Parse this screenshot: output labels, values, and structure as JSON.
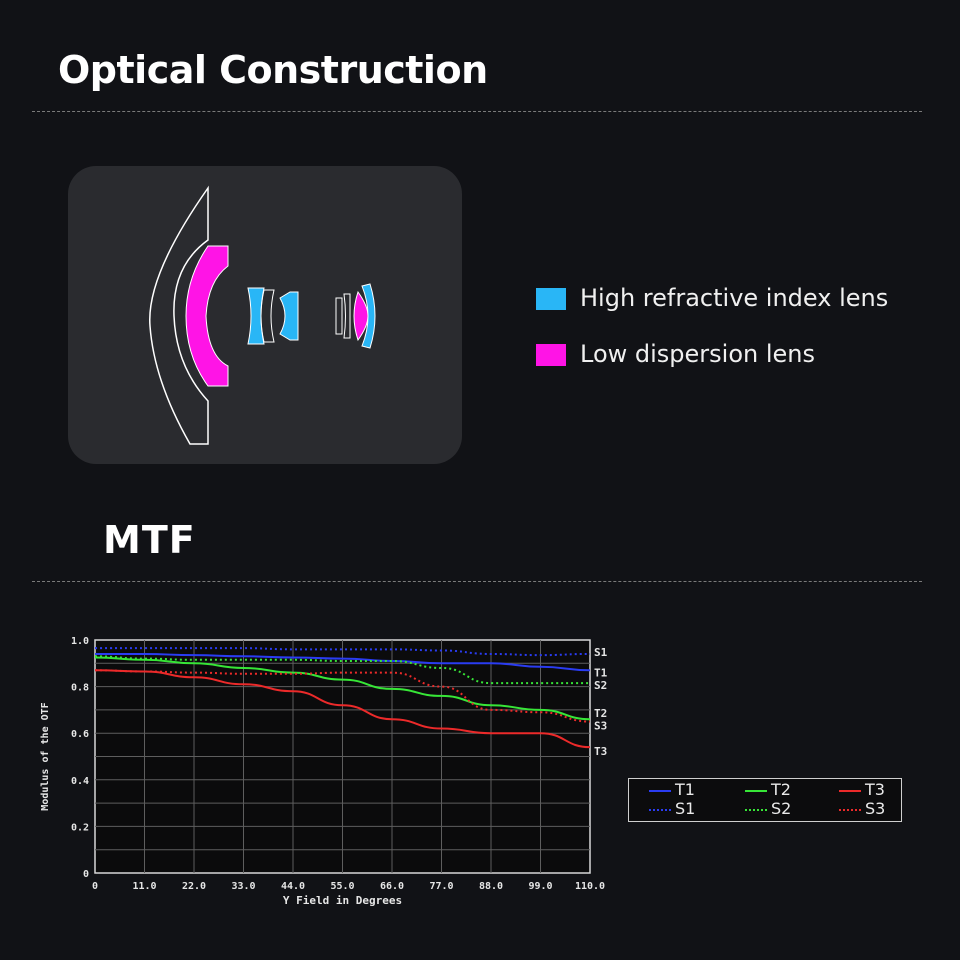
{
  "sections": {
    "optical_title": "Optical Construction",
    "mtf_title": "MTF"
  },
  "optical": {
    "legend": [
      {
        "label": "High refractive index lens",
        "color": "#29b6f6"
      },
      {
        "label": "Low dispersion lens",
        "color": "#ff14e6"
      }
    ]
  },
  "colors": {
    "background": "#111216",
    "card": "#2a2b2f",
    "t1": "#2a3cf2",
    "t2": "#37e637",
    "t3": "#ec2a2a"
  },
  "chart_data": {
    "type": "line",
    "xlabel": "Y Field in Degrees",
    "ylabel": "Modulus of the OTF",
    "xlim": [
      0,
      110
    ],
    "ylim": [
      0,
      1.0
    ],
    "x_ticks": [
      "0",
      "11.0",
      "22.0",
      "33.0",
      "44.0",
      "55.0",
      "66.0",
      "77.0",
      "88.0",
      "99.0",
      "110.0"
    ],
    "y_ticks": [
      "0",
      "0.2",
      "0.4",
      "0.6",
      "0.8",
      "1.0"
    ],
    "grid": true,
    "legend_position": "right",
    "series": [
      {
        "name": "T1",
        "color": "#2a3cf2",
        "dash": false,
        "end_label": "T1",
        "x": [
          0,
          11,
          22,
          33,
          44,
          55,
          66,
          77,
          88,
          99,
          110
        ],
        "y": [
          0.94,
          0.94,
          0.935,
          0.93,
          0.925,
          0.92,
          0.91,
          0.9,
          0.9,
          0.885,
          0.87
        ]
      },
      {
        "name": "S1",
        "color": "#2a3cf2",
        "dash": true,
        "end_label": "S1",
        "x": [
          0,
          11,
          22,
          33,
          44,
          55,
          66,
          77,
          88,
          99,
          110
        ],
        "y": [
          0.965,
          0.965,
          0.965,
          0.965,
          0.96,
          0.96,
          0.96,
          0.955,
          0.94,
          0.935,
          0.94
        ]
      },
      {
        "name": "T2",
        "color": "#37e637",
        "dash": false,
        "end_label": "T2",
        "x": [
          0,
          11,
          22,
          33,
          44,
          55,
          66,
          77,
          88,
          99,
          110
        ],
        "y": [
          0.925,
          0.915,
          0.9,
          0.88,
          0.86,
          0.83,
          0.79,
          0.76,
          0.72,
          0.7,
          0.66
        ]
      },
      {
        "name": "S2",
        "color": "#37e637",
        "dash": true,
        "end_label": "S2",
        "x": [
          0,
          11,
          22,
          33,
          44,
          55,
          66,
          77,
          88,
          99,
          110
        ],
        "y": [
          0.93,
          0.92,
          0.915,
          0.915,
          0.915,
          0.91,
          0.91,
          0.88,
          0.815,
          0.815,
          0.815
        ]
      },
      {
        "name": "T3",
        "color": "#ec2a2a",
        "dash": false,
        "end_label": "T3",
        "x": [
          0,
          11,
          22,
          33,
          44,
          55,
          66,
          77,
          88,
          99,
          110
        ],
        "y": [
          0.87,
          0.865,
          0.84,
          0.81,
          0.78,
          0.72,
          0.66,
          0.62,
          0.6,
          0.6,
          0.54
        ]
      },
      {
        "name": "S3",
        "color": "#ec2a2a",
        "dash": true,
        "end_label": "S3",
        "x": [
          0,
          11,
          22,
          33,
          44,
          55,
          66,
          77,
          88,
          99,
          110
        ],
        "y": [
          0.87,
          0.865,
          0.86,
          0.855,
          0.855,
          0.86,
          0.86,
          0.8,
          0.7,
          0.69,
          0.65
        ]
      }
    ]
  }
}
